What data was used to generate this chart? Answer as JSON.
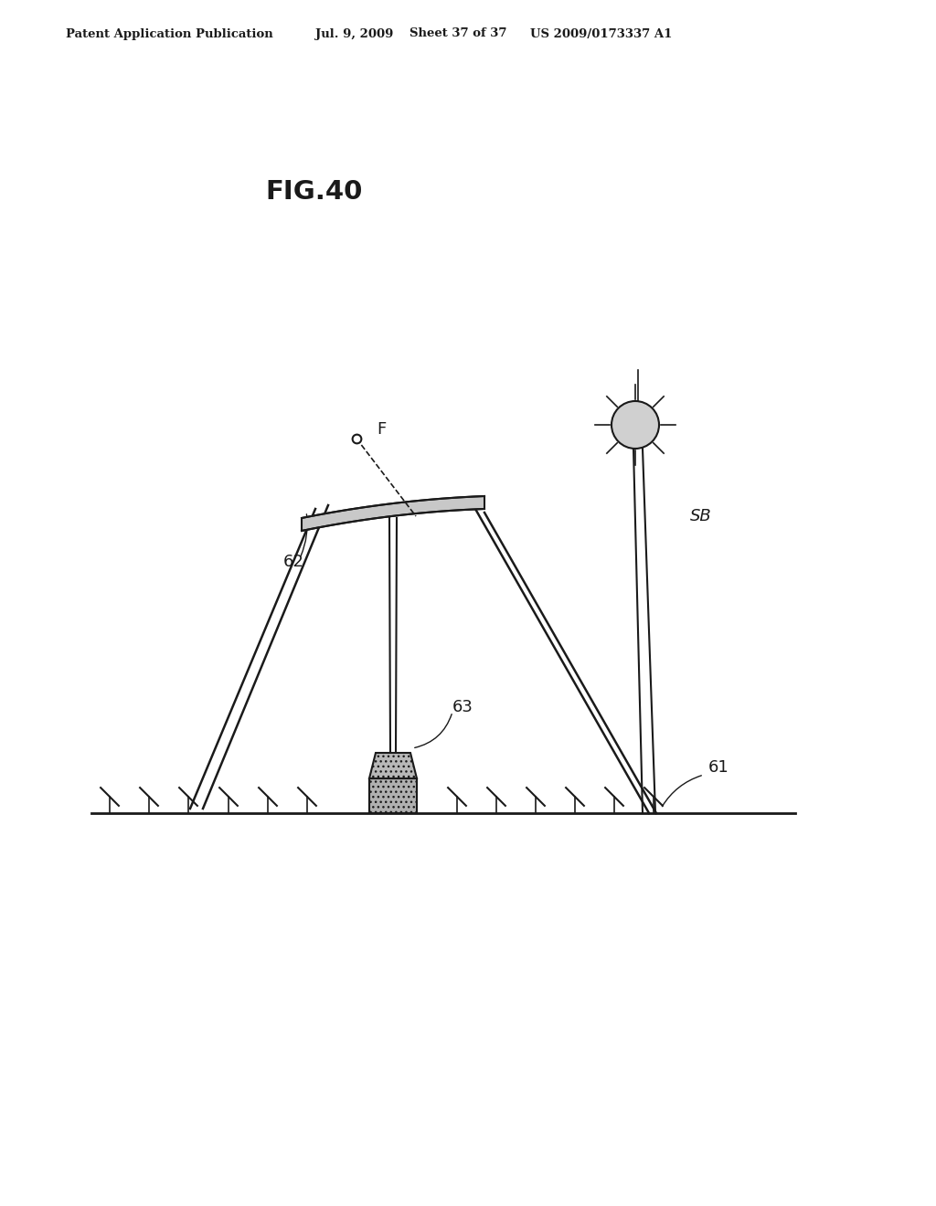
{
  "bg_color": "#ffffff",
  "header_text": "Patent Application Publication",
  "header_date": "Jul. 9, 2009",
  "header_sheet": "Sheet 37 of 37",
  "header_patent": "US 2009/0173337 A1",
  "fig_label": "FIG.40",
  "label_62": "62",
  "label_63": "63",
  "label_61": "61",
  "label_SB": "SB",
  "label_F": "F",
  "line_color": "#1a1a1a",
  "fill_light": "#c8c8c8",
  "fill_dark": "#888888"
}
